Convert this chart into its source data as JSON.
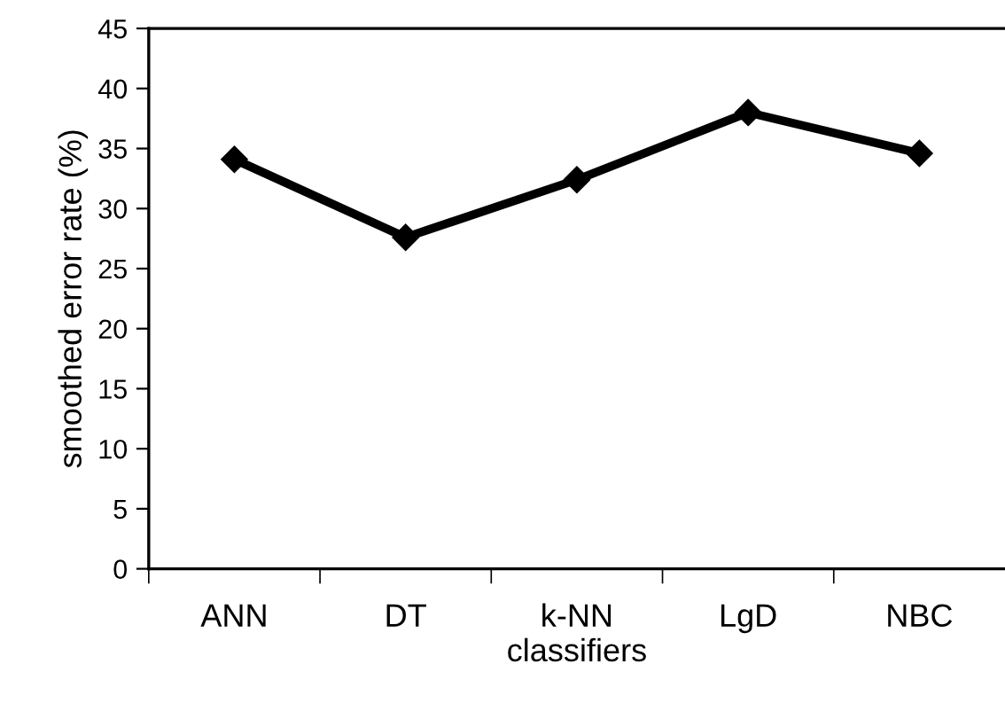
{
  "chart_data": {
    "type": "line",
    "xlabel": "classifiers",
    "ylabel": "smoothed error rate (%)",
    "categories": [
      "ANN",
      "DT",
      "k-NN",
      "LgD",
      "NBC"
    ],
    "series": [
      {
        "color": "#000000",
        "values": [
          34.1,
          27.6,
          32.4,
          38.0,
          34.6
        ]
      }
    ],
    "ylim": [
      0,
      45
    ],
    "yticks": [
      0,
      5,
      10,
      15,
      20,
      25,
      30,
      35,
      40,
      45
    ],
    "grid": false,
    "marker": "diamond",
    "line_style": "solid"
  }
}
